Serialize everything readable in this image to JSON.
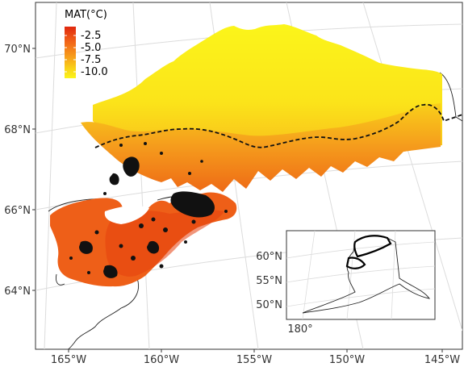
{
  "legend": {
    "title": "MAT(°C)",
    "entries": [
      "-2.5",
      "-5.0",
      "-7.5",
      "-10.0"
    ],
    "gradient_colors": [
      "#e0280e",
      "#f26518",
      "#f7a21c",
      "#f9d418",
      "#fbf51a"
    ]
  },
  "map_axes": {
    "x_ticks": [
      "165°W",
      "160°W",
      "155°W",
      "150°W",
      "145°W"
    ],
    "y_ticks": [
      "70°N",
      "68°N",
      "66°N",
      "64°N"
    ]
  },
  "inset": {
    "y_ticks": [
      "60°N",
      "55°N",
      "50°N"
    ],
    "x_ticks": [
      "180°"
    ]
  },
  "colors": {
    "cold": "#fbf51a",
    "mid": "#f7a21c",
    "warm": "#ee5a16",
    "boundary_dash": "#111111",
    "graticule": "#dddddd"
  }
}
